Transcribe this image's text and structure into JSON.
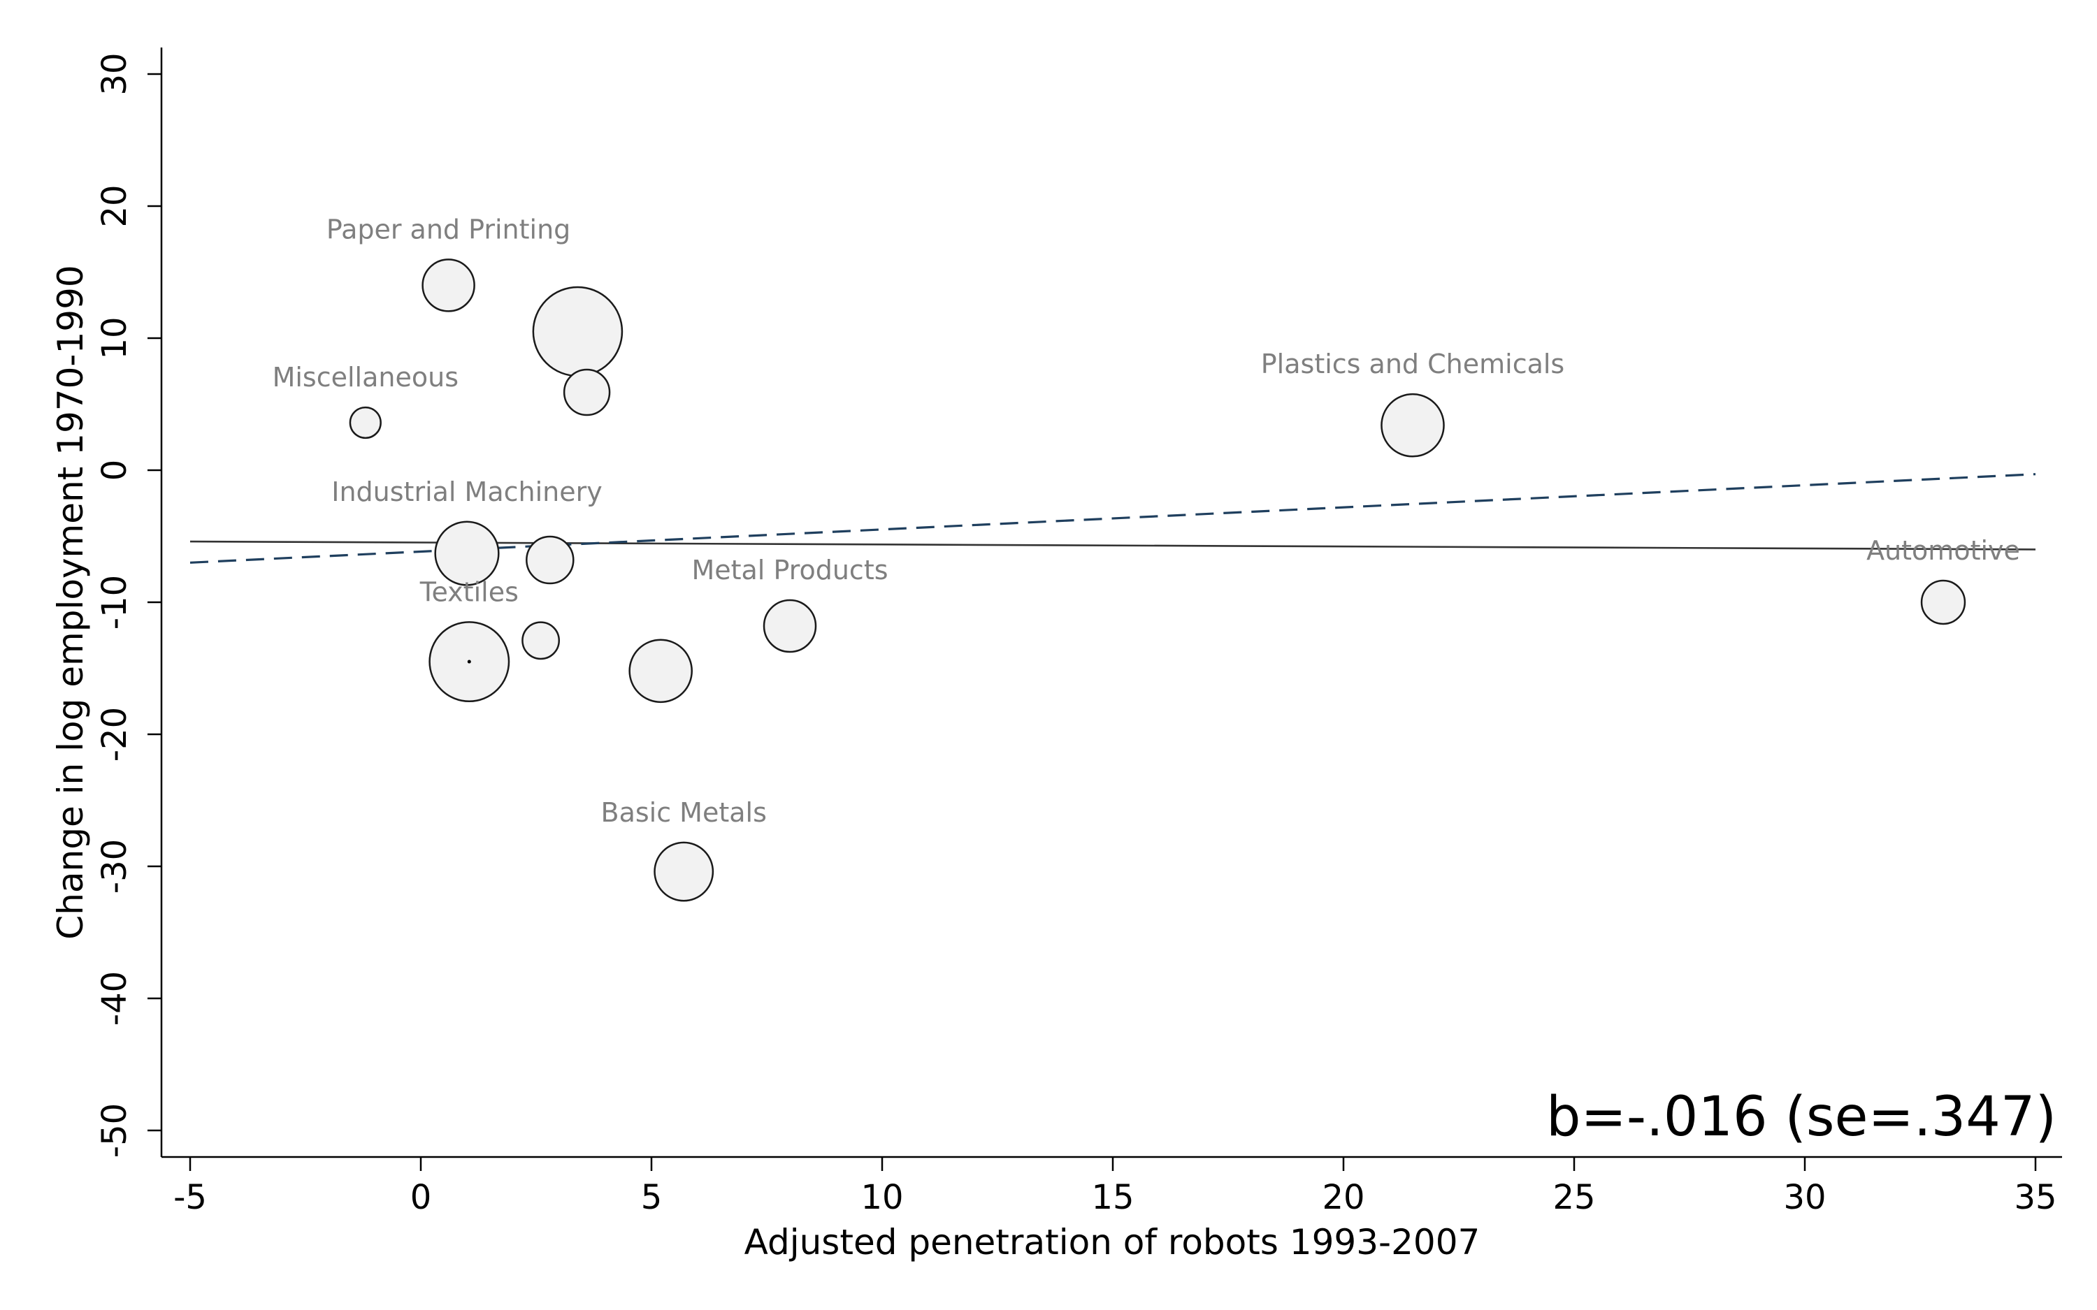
{
  "chart_data": {
    "type": "scatter",
    "title": "",
    "xlabel": "Adjusted penetration of robots 1993-2007",
    "ylabel": "Change in log employment 1970-1990",
    "xlim": [
      -5,
      35
    ],
    "ylim": [
      -50,
      30
    ],
    "xticks": [
      "-5",
      "0",
      "5",
      "10",
      "15",
      "20",
      "25",
      "30",
      "35"
    ],
    "yticks": [
      "-50",
      "-40",
      "-30",
      "-20",
      "-10",
      "0",
      "10",
      "20",
      "30"
    ],
    "grid": false,
    "bubble_sizes": "relative weights",
    "points": [
      {
        "label": "Paper and Printing",
        "x": 0.6,
        "y": 14.0,
        "size": 1.0
      },
      {
        "label": "",
        "x": 3.4,
        "y": 10.5,
        "size": 2.95
      },
      {
        "label": "",
        "x": 3.6,
        "y": 5.9,
        "size": 0.77
      },
      {
        "label": "Miscellaneous",
        "x": -1.2,
        "y": 3.6,
        "size": 0.35
      },
      {
        "label": "Plastics and Chemicals",
        "x": 21.5,
        "y": 3.4,
        "size": 1.45
      },
      {
        "label": "Industrial Machinery",
        "x": 1.0,
        "y": -6.3,
        "size": 1.5
      },
      {
        "label": "",
        "x": 2.8,
        "y": -6.8,
        "size": 0.82
      },
      {
        "label": "Automotive",
        "x": 33.0,
        "y": -10.0,
        "size": 0.7
      },
      {
        "label": "Metal Products",
        "x": 8.0,
        "y": -11.8,
        "size": 1.0
      },
      {
        "label": "",
        "x": 2.6,
        "y": -12.9,
        "size": 0.5
      },
      {
        "label": "Textiles",
        "x": 1.05,
        "y": -14.5,
        "size": 2.35
      },
      {
        "label": "",
        "x": 5.2,
        "y": -15.2,
        "size": 1.45
      },
      {
        "label": "Basic Metals",
        "x": 5.7,
        "y": -30.4,
        "size": 1.27
      }
    ],
    "lines": [
      {
        "style": "solid",
        "color": "#333333",
        "x": [
          -5,
          35
        ],
        "y": [
          -5.4,
          -6.0
        ]
      },
      {
        "style": "dashed",
        "color": "#1f3f5e",
        "x": [
          -5,
          35
        ],
        "y": [
          -7.0,
          -0.3
        ]
      }
    ],
    "annotation": "b=-.016 (se=.347)"
  }
}
